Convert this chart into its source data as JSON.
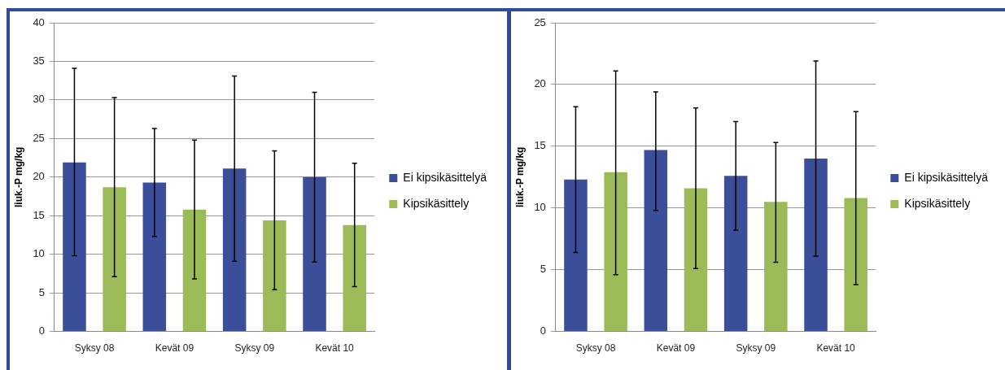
{
  "chart_data": [
    {
      "type": "bar",
      "ylabel": "liuk.-P mg/kg",
      "categories": [
        "Syksy 08",
        "Kevät 09",
        "Syksy 09",
        "Kevät 10"
      ],
      "ylim": [
        0,
        40
      ],
      "yticks": [
        0,
        5,
        10,
        15,
        20,
        25,
        30,
        35,
        40
      ],
      "grid": "y",
      "legend": "right",
      "series": [
        {
          "name": "Ei kipsikäsittelyä",
          "color": "#3b4e9a",
          "values": [
            21.9,
            19.3,
            21.1,
            20.0
          ],
          "errors": [
            [
              9.8,
              34.1
            ],
            [
              12.3,
              26.3
            ],
            [
              9.1,
              33.1
            ],
            [
              9.0,
              31.0
            ]
          ]
        },
        {
          "name": "Kipsikäsittely",
          "color": "#9bbb59",
          "values": [
            18.7,
            15.8,
            14.4,
            13.8
          ],
          "errors": [
            [
              7.1,
              30.3
            ],
            [
              6.8,
              24.8
            ],
            [
              5.4,
              23.4
            ],
            [
              5.8,
              21.8
            ]
          ]
        }
      ]
    },
    {
      "type": "bar",
      "ylabel": "liuk.-P mg/kg",
      "categories": [
        "Syksy 08",
        "Kevät 09",
        "Syksy 09",
        "Kevät 10"
      ],
      "ylim": [
        0,
        25
      ],
      "yticks": [
        0,
        5,
        10,
        15,
        20,
        25
      ],
      "grid": "y",
      "legend": "right",
      "series": [
        {
          "name": "Ei kipsikäsittelyä",
          "color": "#3b4e9a",
          "values": [
            12.3,
            14.7,
            12.6,
            14.0
          ],
          "errors": [
            [
              6.4,
              18.2
            ],
            [
              9.8,
              19.4
            ],
            [
              8.2,
              17.0
            ],
            [
              6.1,
              21.9
            ]
          ]
        },
        {
          "name": "Kipsikäsittely",
          "color": "#9bbb59",
          "values": [
            12.9,
            11.6,
            10.5,
            10.8
          ],
          "errors": [
            [
              4.6,
              21.1
            ],
            [
              5.1,
              18.1
            ],
            [
              5.6,
              15.3
            ],
            [
              3.8,
              17.8
            ]
          ]
        }
      ]
    }
  ]
}
